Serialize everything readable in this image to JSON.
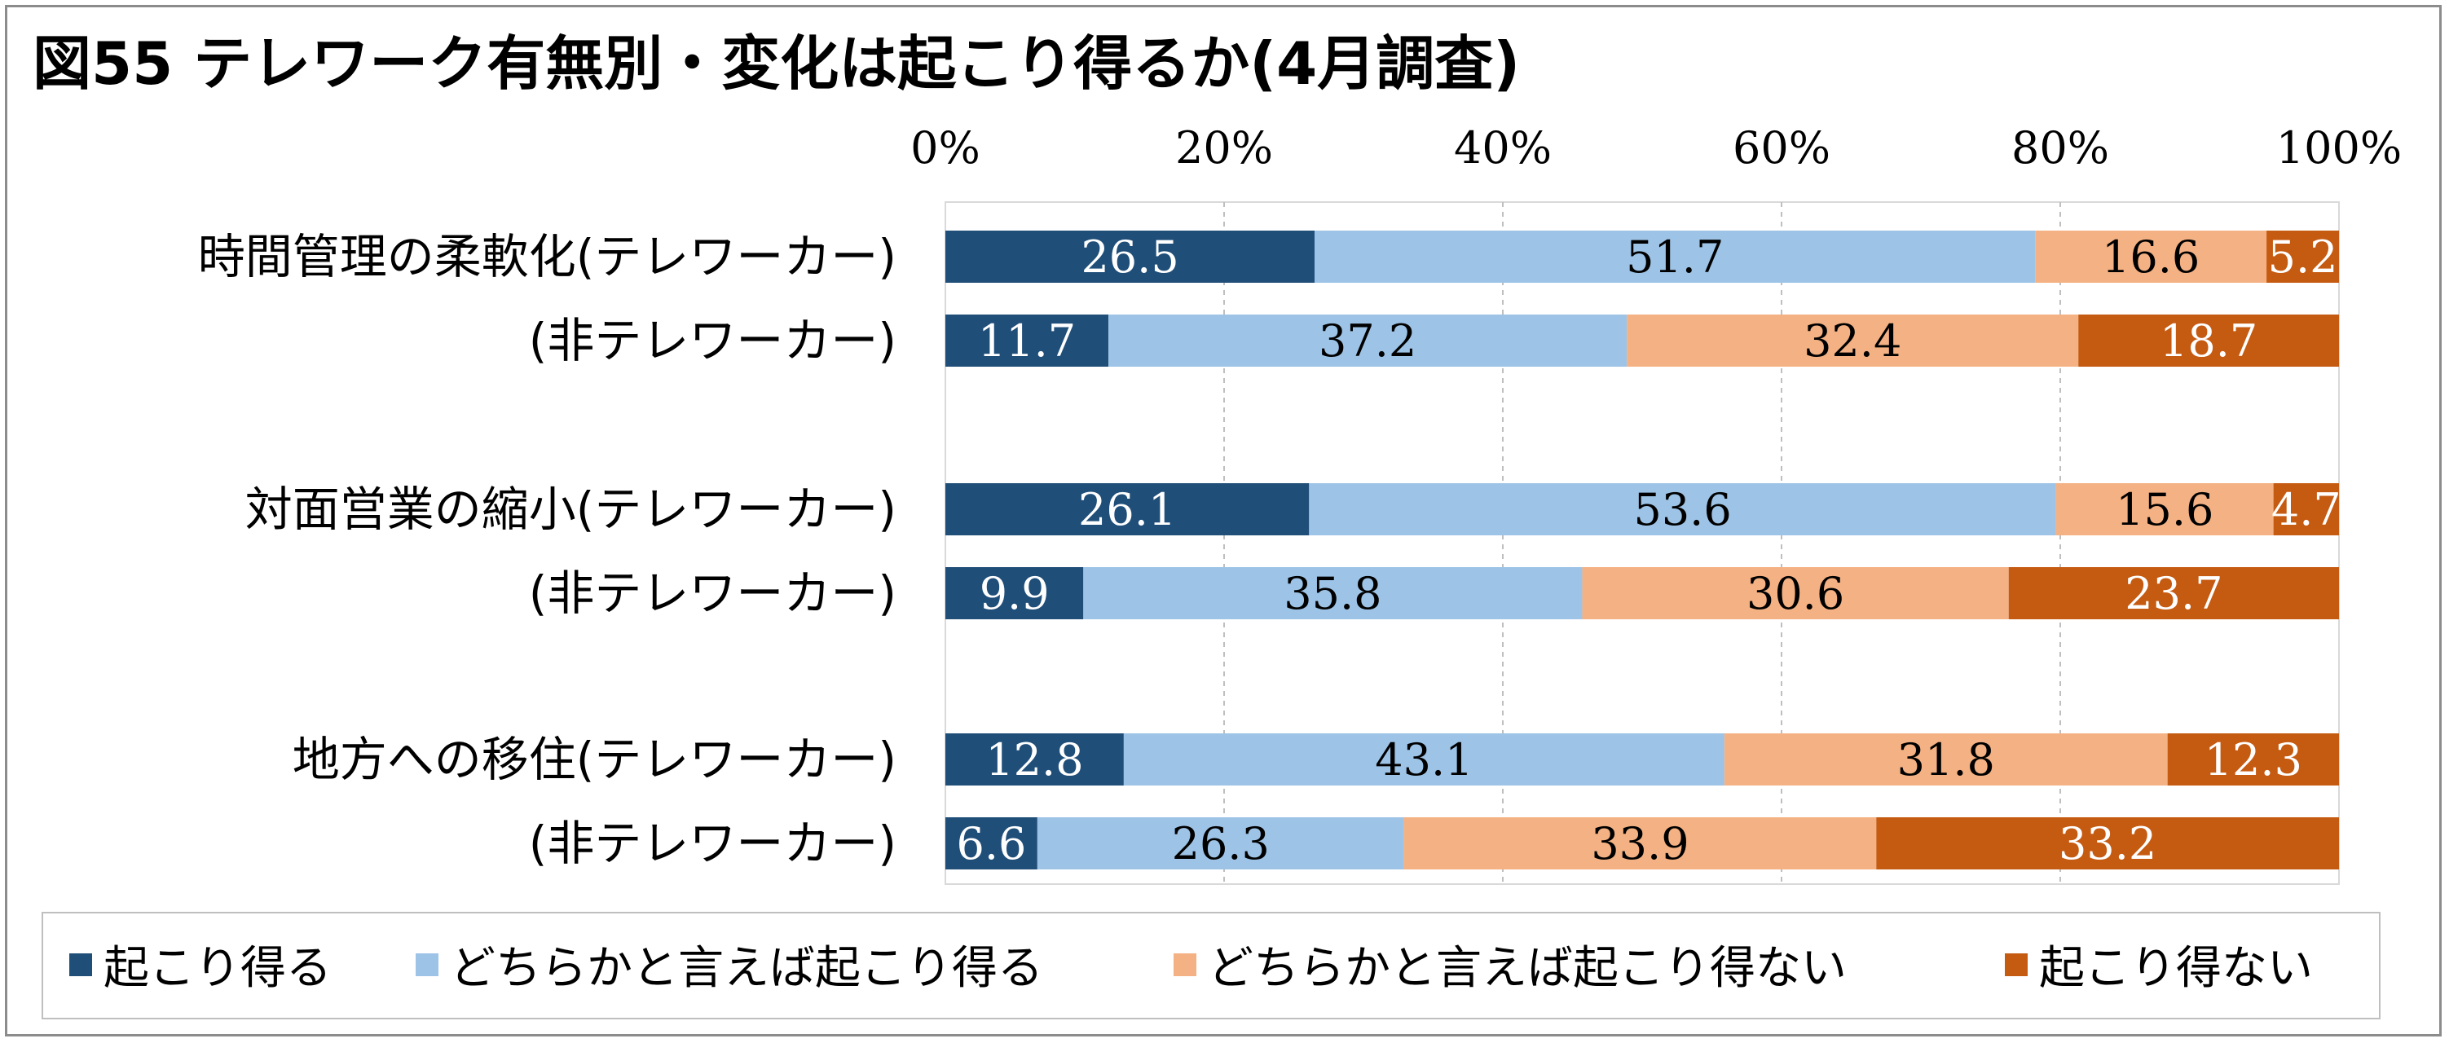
{
  "chart_data": {
    "type": "bar",
    "orientation": "horizontal",
    "stacked": "percent",
    "title": "図55 テレワーク有無別・変化は起こり得るか(4月調査)",
    "x_ticks": [
      "0%",
      "20%",
      "40%",
      "60%",
      "80%",
      "100%"
    ],
    "xlim": [
      0,
      100
    ],
    "grid": "vertical dashed",
    "legend_position": "bottom",
    "categories": [
      "時間管理の柔軟化(テレワーカー)",
      "(非テレワーカー)",
      "対面営業の縮小(テレワーカー)",
      "(非テレワーカー)",
      "地方への移住(テレワーカー)",
      "(非テレワーカー)"
    ],
    "series": [
      {
        "name": "起こり得る",
        "color": "#1f4e79",
        "label_color": "#ffffff",
        "values": [
          26.5,
          11.7,
          26.1,
          9.9,
          12.8,
          6.6
        ]
      },
      {
        "name": "どちらかと言えば起こり得る",
        "color": "#9dc3e6",
        "label_color": "#000000",
        "values": [
          51.7,
          37.2,
          53.6,
          35.8,
          43.1,
          26.3
        ]
      },
      {
        "name": "どちらかと言えば起こり得ない",
        "color": "#f4b183",
        "label_color": "#000000",
        "values": [
          16.6,
          32.4,
          15.6,
          30.6,
          31.8,
          33.9
        ]
      },
      {
        "name": "起こり得ない",
        "color": "#c55a11",
        "label_color": "#ffffff",
        "values": [
          5.2,
          18.7,
          4.7,
          23.7,
          12.3,
          33.2
        ]
      }
    ]
  }
}
